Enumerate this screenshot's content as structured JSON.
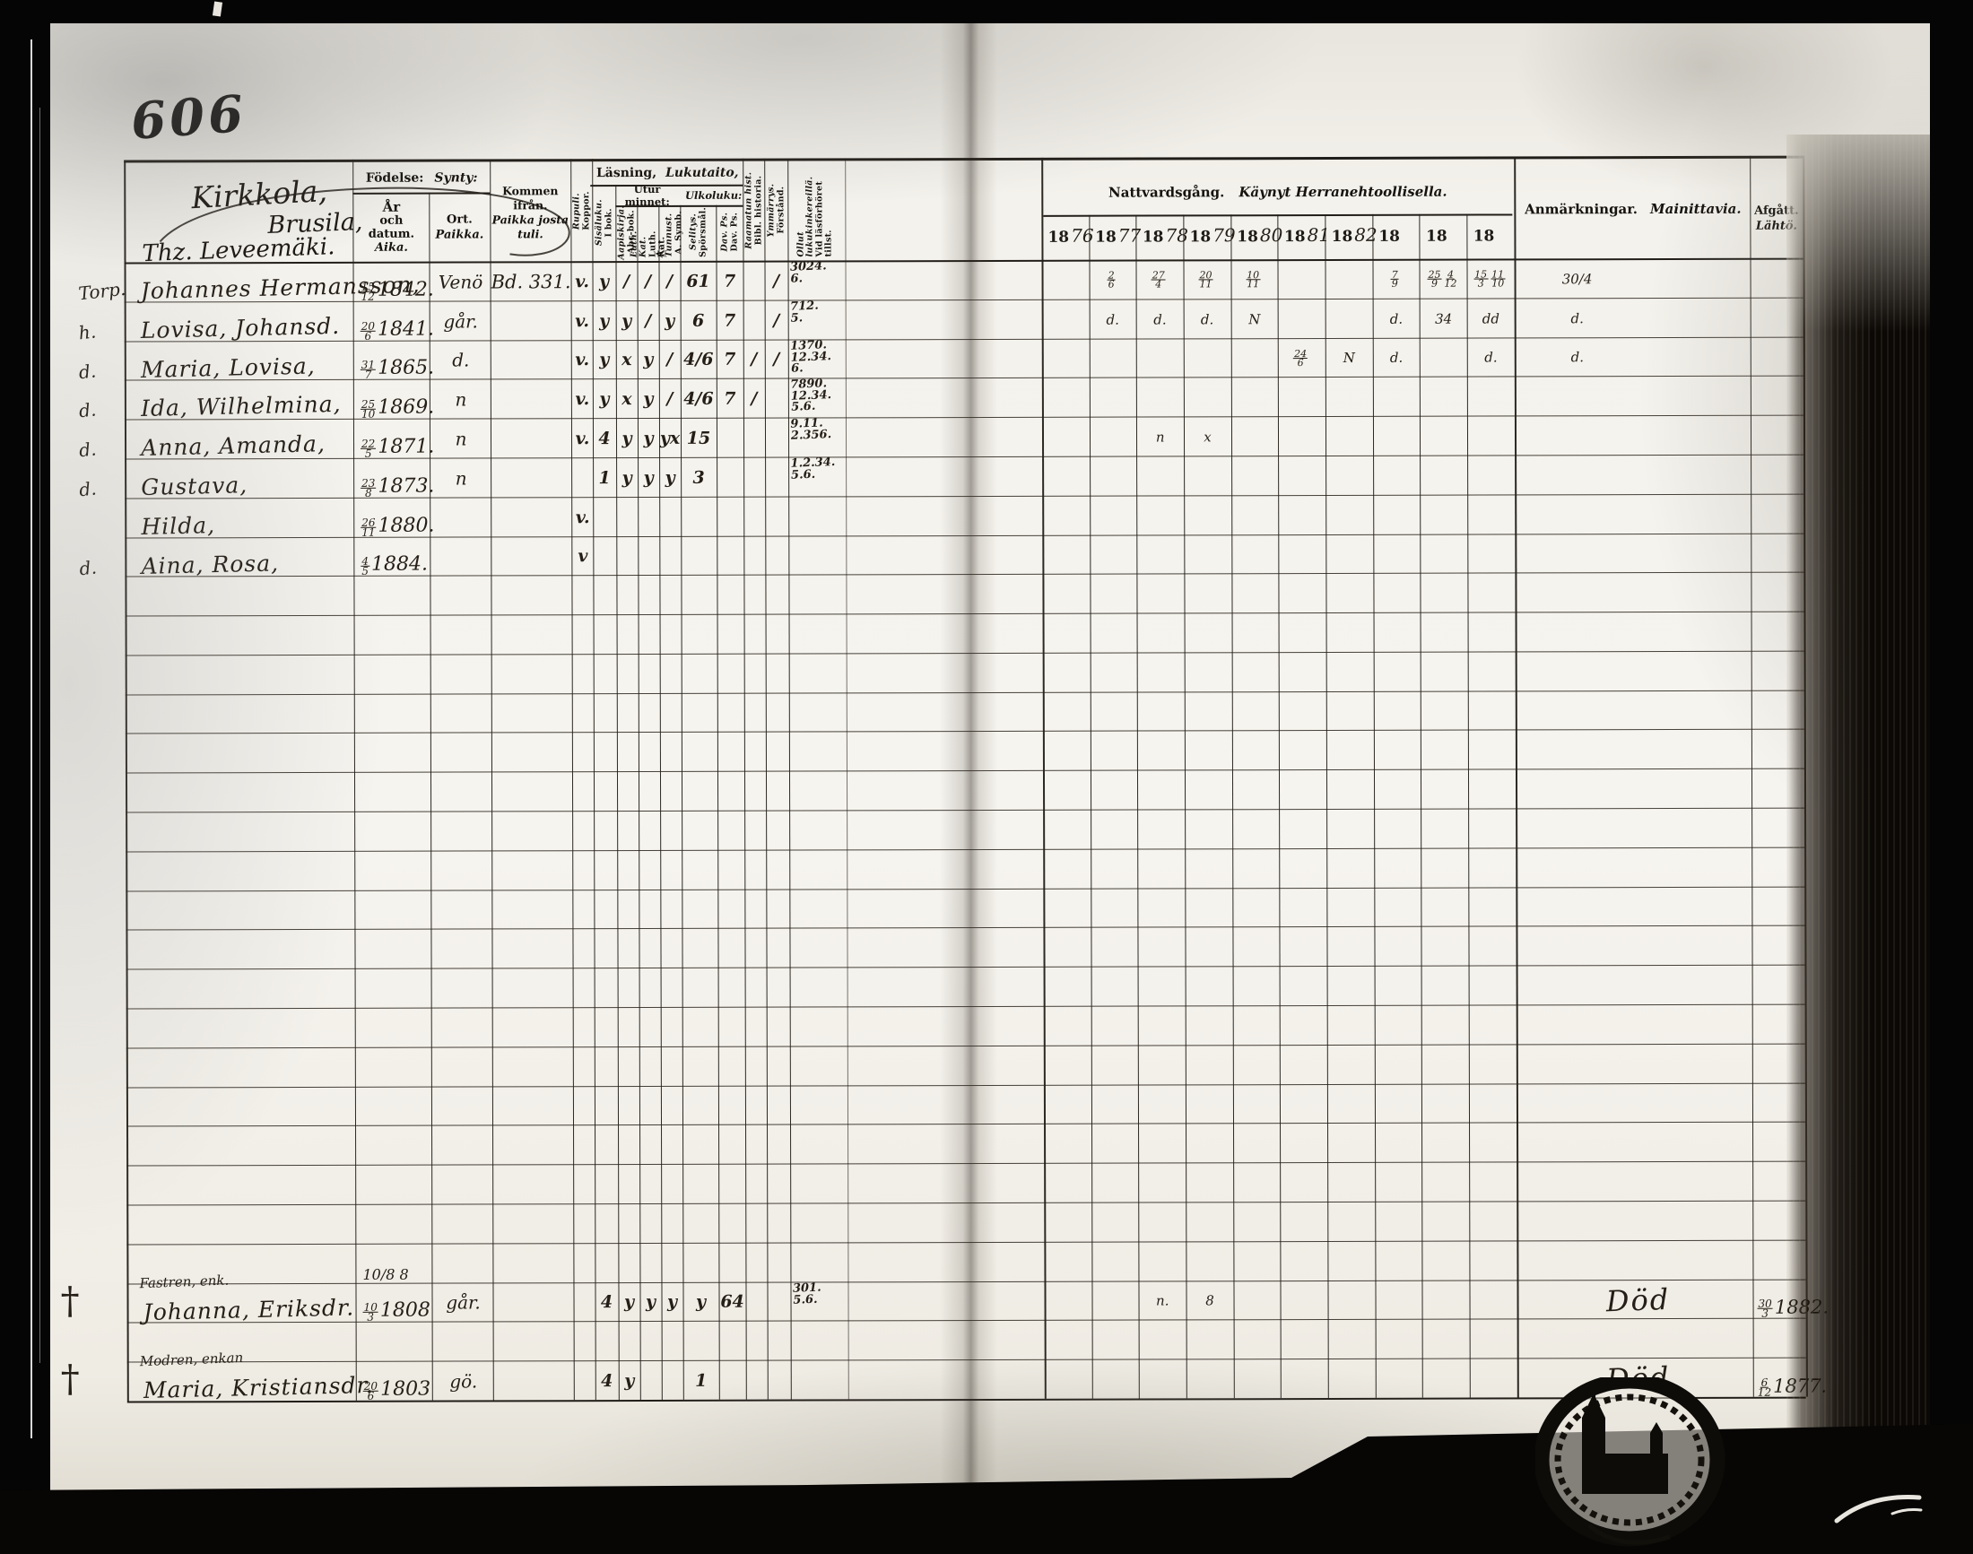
{
  "page": {
    "number": "606",
    "heading": {
      "line1": "Kirkkola,",
      "line2": "Brusila,",
      "line3": "Thz. Leveemäki."
    }
  },
  "table": {
    "header": {
      "fodelse_sv": "Födelse:",
      "fodelse_fi": "Synty:",
      "ar_line1": "År",
      "ar_line2": "och datum.",
      "ar_fi": "Aika.",
      "ort_sv": "Ort.",
      "ort_fi": "Paikka.",
      "kommen_sv": "Kommen ifrån.",
      "kommen_fi1": "Paikka josta",
      "kommen_fi2": "tuli.",
      "lasning_sv": "Läsning,",
      "lasning_fi": "Lukutaito,",
      "utur_sv": "Utur minnet:",
      "utur_fi": "Ulkoluku:",
      "vertical_cols": [
        {
          "id": "koppor",
          "sv": "Koppor.",
          "fi": "Rupuli."
        },
        {
          "id": "ibok",
          "sv": "I bok.",
          "fi": "Sisäluku."
        },
        {
          "id": "abc",
          "sv": "Abc-bok.",
          "fi": "Aapiskirja."
        },
        {
          "id": "luth",
          "sv": "Luth. Kat.",
          "fi": "Luth. Kat."
        },
        {
          "id": "symb",
          "sv": "A. Symb.",
          "fi": "A. Tunnust."
        },
        {
          "id": "sporsmal",
          "sv": "Spörsmål.",
          "fi": "Selitys."
        },
        {
          "id": "dav",
          "sv": "Dav. Ps.",
          "fi": "Dav. Ps."
        },
        {
          "id": "bibl",
          "sv": "Bibl. historia.",
          "fi": "Raamatun hist."
        },
        {
          "id": "forstand",
          "sv": "Förstånd.",
          "fi": "Ymmärrys."
        },
        {
          "id": "vid",
          "sv": "Vid läsförhöret tillst.",
          "fi": "Ollut lukukinkereillä."
        }
      ],
      "nattvard_sv": "Nattvardsgång.",
      "nattvard_fi": "Käynyt Herranehtoollisella.",
      "years_printed": [
        "18",
        "18",
        "18",
        "18",
        "18",
        "18",
        "18",
        "18",
        "18",
        "18"
      ],
      "years_written": [
        "76",
        "77",
        "78",
        "79",
        "80",
        "81",
        "82",
        "",
        "",
        ""
      ],
      "anmarkningar_sv": "Anmärkningar.",
      "anmarkningar_fi": "Mainittavia.",
      "afgatt_sv": "Afgått.",
      "afgatt_fi": "Lähtö."
    },
    "rows": [
      {
        "row": 0,
        "margin": "Torp.",
        "name": "Johannes Hermansson,",
        "date": {
          "t": "15",
          "b": "12",
          "y": "1842."
        },
        "ort": "Venö",
        "kommen": "Bd. 331.",
        "marks": {
          "koppor": "v.",
          "ibok": "y",
          "abc": "/",
          "luth": "/",
          "symb": "/",
          "sporsmal": "61",
          "dav": "7",
          "forstand": "/"
        },
        "vid": [
          "3024.",
          "6."
        ],
        "communion": [
          "",
          "2/6",
          "27/4",
          "20/11",
          "10/11",
          "",
          "",
          "7/9",
          "25/9 4/12",
          "15/3 11/10"
        ],
        "anm": "30/4"
      },
      {
        "row": 1,
        "margin": "h.",
        "name": "Lovisa, Johansd.",
        "date": {
          "t": "20",
          "b": "6",
          "y": "1841."
        },
        "ort": "går.",
        "marks": {
          "koppor": "v.",
          "ibok": "y",
          "abc": "y",
          "luth": "/",
          "symb": "y",
          "sporsmal": "6",
          "dav": "7",
          "forstand": "/"
        },
        "vid": [
          "712.",
          "5."
        ],
        "communion": [
          "",
          "d.",
          "d.",
          "d.",
          "N",
          "",
          "",
          "d.",
          "3 4",
          "d d"
        ],
        "anm": "d."
      },
      {
        "row": 2,
        "margin": "d.",
        "name": "Maria, Lovisa,",
        "date": {
          "t": "31",
          "b": "7",
          "y": "1865."
        },
        "ort": "d.",
        "marks": {
          "koppor": "v.",
          "ibok": "y",
          "abc": "x",
          "luth": "y",
          "symb": "/",
          "sporsmal": "4/6",
          "dav": "7",
          "bibl": "/",
          "forstand": "/"
        },
        "vid": [
          "1370.",
          "12.34.",
          "6."
        ],
        "communion": [
          "",
          "",
          "",
          "",
          "",
          "24/6",
          "N",
          "d.",
          "",
          "d."
        ],
        "anm": "d."
      },
      {
        "row": 3,
        "margin": "d.",
        "name": "Ida, Wilhelmina,",
        "date": {
          "t": "25",
          "b": "10",
          "y": "1869."
        },
        "ort": "n",
        "marks": {
          "koppor": "v.",
          "ibok": "y",
          "abc": "x",
          "luth": "y",
          "symb": "/",
          "sporsmal": "4/6",
          "dav": "7",
          "bibl": "/"
        },
        "vid": [
          "7890.",
          "12.34.",
          "5.6."
        ],
        "communion": [
          "",
          "",
          "",
          "",
          "",
          "",
          "",
          "",
          "",
          ""
        ],
        "anm": ""
      },
      {
        "row": 4,
        "margin": "d.",
        "name": "Anna, Amanda,",
        "date": {
          "t": "22",
          "b": "5",
          "y": "1871."
        },
        "ort": "n",
        "marks": {
          "koppor": "v.",
          "ibok": "4",
          "abc": "y",
          "luth": "y",
          "symb": "yx",
          "sporsmal": "15"
        },
        "vid": [
          "9.11.",
          "2.356."
        ],
        "communion": [
          "",
          "",
          "n",
          "x",
          "",
          "",
          "",
          "",
          "",
          ""
        ],
        "anm": ""
      },
      {
        "row": 5,
        "margin": "d.",
        "name": "Gustava,",
        "date": {
          "t": "23",
          "b": "8",
          "y": "1873."
        },
        "ort": "n",
        "marks": {
          "ibok": "1",
          "abc": "y",
          "luth": "y",
          "symb": "y",
          "sporsmal": "3"
        },
        "vid": [
          "1.2.34.",
          "5.6."
        ],
        "communion": [
          "",
          "",
          "",
          "",
          "",
          "",
          "",
          "",
          "",
          ""
        ],
        "anm": ""
      },
      {
        "row": 6,
        "name": "Hilda,",
        "date": {
          "t": "26",
          "b": "11",
          "y": "1880."
        },
        "marks": {
          "koppor": "v."
        },
        "communion": [
          "",
          "",
          "",
          "",
          "",
          "",
          "",
          "",
          "",
          ""
        ],
        "anm": ""
      },
      {
        "row": 7,
        "margin": "d.",
        "name": "Aina, Rosa,",
        "date": {
          "t": "4",
          "b": "5",
          "y": "1884."
        },
        "marks": {
          "koppor": "v"
        },
        "communion": [
          "",
          "",
          "",
          "",
          "",
          "",
          "",
          "",
          "",
          ""
        ],
        "anm": ""
      },
      {
        "row": 25,
        "datetext": "10/8   8"
      },
      {
        "row": 26,
        "cross": "†",
        "relation": "Fastren, enk.",
        "name": "Johanna, Eriksdr.",
        "date": {
          "t": "10",
          "b": "3",
          "y": "1808"
        },
        "ort": "går.",
        "marks": {
          "ibok": "4",
          "abc": "y",
          "luth": "y",
          "symb": "y",
          "sporsmal": "y",
          "dav": "64"
        },
        "vid": [
          "301.",
          "5.6."
        ],
        "communion": [
          "",
          "",
          "n.",
          "8",
          "",
          "",
          "",
          "",
          "",
          ""
        ],
        "anm": "Död",
        "afgatt": {
          "t": "30",
          "b": "3",
          "y": "1882."
        }
      },
      {
        "row": 28,
        "cross": "†",
        "relation": "Modren, enkan",
        "name": "Maria, Kristiansdr.",
        "date": {
          "t": "20",
          "b": "6",
          "y": "1803"
        },
        "ort": "gö.",
        "marks": {
          "ibok": "4",
          "abc": "y",
          "sporsmal": "1"
        },
        "communion": [
          "",
          "",
          "",
          "",
          "",
          "",
          "",
          "",
          "",
          ""
        ],
        "anm": "Död",
        "afgatt": {
          "t": "6",
          "b": "12",
          "y": "1877."
        }
      }
    ]
  },
  "stamp": {
    "name": "church-seal"
  }
}
